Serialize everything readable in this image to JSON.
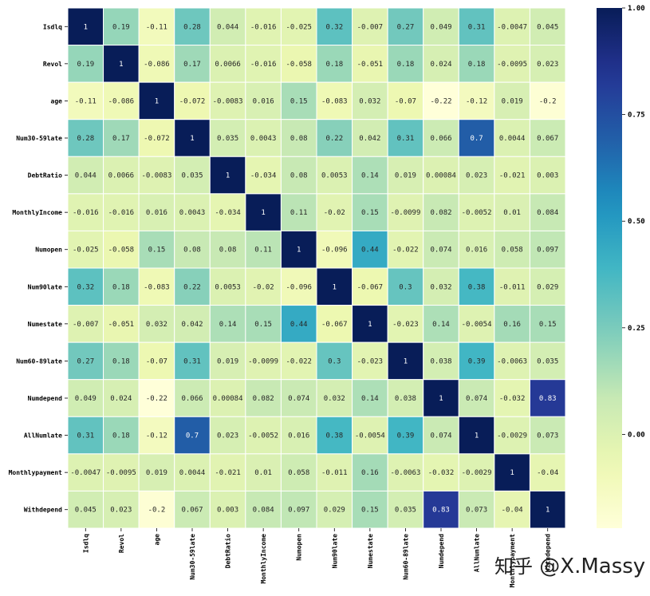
{
  "chart_data": {
    "type": "heatmap",
    "title": "",
    "xlabel": "",
    "ylabel": "",
    "labels": [
      "Isdlq",
      "Revol",
      "age",
      "Num30-59late",
      "DebtRatio",
      "MonthlyIncome",
      "Numopen",
      "Num90late",
      "Numestate",
      "Num60-89late",
      "Numdepend",
      "AllNumlate",
      "Monthlypayment",
      "Withdepend"
    ],
    "values": [
      [
        1,
        0.19,
        -0.11,
        0.28,
        0.044,
        -0.016,
        -0.025,
        0.32,
        -0.007,
        0.27,
        0.049,
        0.31,
        -0.0047,
        0.045
      ],
      [
        0.19,
        1,
        -0.086,
        0.17,
        0.0066,
        -0.016,
        -0.058,
        0.18,
        -0.051,
        0.18,
        0.024,
        0.18,
        -0.0095,
        0.023
      ],
      [
        -0.11,
        -0.086,
        1,
        -0.072,
        -0.0083,
        0.016,
        0.15,
        -0.083,
        0.032,
        -0.07,
        -0.22,
        -0.12,
        0.019,
        -0.2
      ],
      [
        0.28,
        0.17,
        -0.072,
        1,
        0.035,
        0.0043,
        0.08,
        0.22,
        0.042,
        0.31,
        0.066,
        0.7,
        0.0044,
        0.067
      ],
      [
        0.044,
        0.0066,
        -0.0083,
        0.035,
        1,
        -0.034,
        0.08,
        0.0053,
        0.14,
        0.019,
        0.00084,
        0.023,
        -0.021,
        0.003
      ],
      [
        -0.016,
        -0.016,
        0.016,
        0.0043,
        -0.034,
        1,
        0.11,
        -0.02,
        0.15,
        -0.0099,
        0.082,
        -0.0052,
        0.01,
        0.084
      ],
      [
        -0.025,
        -0.058,
        0.15,
        0.08,
        0.08,
        0.11,
        1,
        -0.096,
        0.44,
        -0.022,
        0.074,
        0.016,
        0.058,
        0.097
      ],
      [
        0.32,
        0.18,
        -0.083,
        0.22,
        0.0053,
        -0.02,
        -0.096,
        1,
        -0.067,
        0.3,
        0.032,
        0.38,
        -0.011,
        0.029
      ],
      [
        -0.007,
        -0.051,
        0.032,
        0.042,
        0.14,
        0.15,
        0.44,
        -0.067,
        1,
        -0.023,
        0.14,
        -0.0054,
        0.16,
        0.15
      ],
      [
        0.27,
        0.18,
        -0.07,
        0.31,
        0.019,
        -0.0099,
        -0.022,
        0.3,
        -0.023,
        1,
        0.038,
        0.39,
        -0.0063,
        0.035
      ],
      [
        0.049,
        0.024,
        -0.22,
        0.066,
        0.00084,
        0.082,
        0.074,
        0.032,
        0.14,
        0.038,
        1,
        0.074,
        -0.032,
        0.83
      ],
      [
        0.31,
        0.18,
        -0.12,
        0.7,
        0.023,
        -0.0052,
        0.016,
        0.38,
        -0.0054,
        0.39,
        0.074,
        1,
        -0.0029,
        0.073
      ],
      [
        -0.0047,
        -0.0095,
        0.019,
        0.0044,
        -0.021,
        0.01,
        0.058,
        -0.011,
        0.16,
        -0.0063,
        -0.032,
        -0.0029,
        1,
        -0.04
      ],
      [
        0.045,
        0.023,
        -0.2,
        0.067,
        0.003,
        0.084,
        0.097,
        0.029,
        0.15,
        0.035,
        0.83,
        0.073,
        -0.04,
        1
      ]
    ],
    "cell_labels": [
      [
        "1",
        "0.19",
        "-0.11",
        "0.28",
        "0.044",
        "-0.016",
        "-0.025",
        "0.32",
        "-0.007",
        "0.27",
        "0.049",
        "0.31",
        "-0.0047",
        "0.045"
      ],
      [
        "0.19",
        "1",
        "-0.086",
        "0.17",
        "0.0066",
        "-0.016",
        "-0.058",
        "0.18",
        "-0.051",
        "0.18",
        "0.024",
        "0.18",
        "-0.0095",
        "0.023"
      ],
      [
        "-0.11",
        "-0.086",
        "1",
        "-0.072",
        "-0.0083",
        "0.016",
        "0.15",
        "-0.083",
        "0.032",
        "-0.07",
        "-0.22",
        "-0.12",
        "0.019",
        "-0.2"
      ],
      [
        "0.28",
        "0.17",
        "-0.072",
        "1",
        "0.035",
        "0.0043",
        "0.08",
        "0.22",
        "0.042",
        "0.31",
        "0.066",
        "0.7",
        "0.0044",
        "0.067"
      ],
      [
        "0.044",
        "0.0066",
        "-0.0083",
        "0.035",
        "1",
        "-0.034",
        "0.08",
        "0.0053",
        "0.14",
        "0.019",
        "0.00084",
        "0.023",
        "-0.021",
        "0.003"
      ],
      [
        "-0.016",
        "-0.016",
        "0.016",
        "0.0043",
        "-0.034",
        "1",
        "0.11",
        "-0.02",
        "0.15",
        "-0.0099",
        "0.082",
        "-0.0052",
        "0.01",
        "0.084"
      ],
      [
        "-0.025",
        "-0.058",
        "0.15",
        "0.08",
        "0.08",
        "0.11",
        "1",
        "-0.096",
        "0.44",
        "-0.022",
        "0.074",
        "0.016",
        "0.058",
        "0.097"
      ],
      [
        "0.32",
        "0.18",
        "-0.083",
        "0.22",
        "0.0053",
        "-0.02",
        "-0.096",
        "1",
        "-0.067",
        "0.3",
        "0.032",
        "0.38",
        "-0.011",
        "0.029"
      ],
      [
        "-0.007",
        "-0.051",
        "0.032",
        "0.042",
        "0.14",
        "0.15",
        "0.44",
        "-0.067",
        "1",
        "-0.023",
        "0.14",
        "-0.0054",
        "0.16",
        "0.15"
      ],
      [
        "0.27",
        "0.18",
        "-0.07",
        "0.31",
        "0.019",
        "-0.0099",
        "-0.022",
        "0.3",
        "-0.023",
        "1",
        "0.038",
        "0.39",
        "-0.0063",
        "0.035"
      ],
      [
        "0.049",
        "0.024",
        "-0.22",
        "0.066",
        "0.00084",
        "0.082",
        "0.074",
        "0.032",
        "0.14",
        "0.038",
        "1",
        "0.074",
        "-0.032",
        "0.83"
      ],
      [
        "0.31",
        "0.18",
        "-0.12",
        "0.7",
        "0.023",
        "-0.0052",
        "0.016",
        "0.38",
        "-0.0054",
        "0.39",
        "0.074",
        "1",
        "-0.0029",
        "0.073"
      ],
      [
        "-0.0047",
        "-0.0095",
        "0.019",
        "0.0044",
        "-0.021",
        "0.01",
        "0.058",
        "-0.011",
        "0.16",
        "-0.0063",
        "-0.032",
        "-0.0029",
        "1",
        "-0.04"
      ],
      [
        "0.045",
        "0.023",
        "-0.2",
        "0.067",
        "0.003",
        "0.084",
        "0.097",
        "0.029",
        "0.15",
        "0.035",
        "0.83",
        "0.073",
        "-0.04",
        "1"
      ]
    ],
    "colorbar": {
      "colormap": "YlGnBu",
      "vmin": -0.22,
      "vmax": 1.0,
      "ticks": [
        0.0,
        0.25,
        0.5,
        0.75,
        1.0
      ],
      "tick_labels": [
        "0.00",
        "0.25",
        "0.50",
        "0.75",
        "1.00"
      ]
    },
    "grid_line_color": "#ffffff"
  },
  "watermark": {
    "prefix": "知乎",
    "handle": "@X.Massy"
  }
}
